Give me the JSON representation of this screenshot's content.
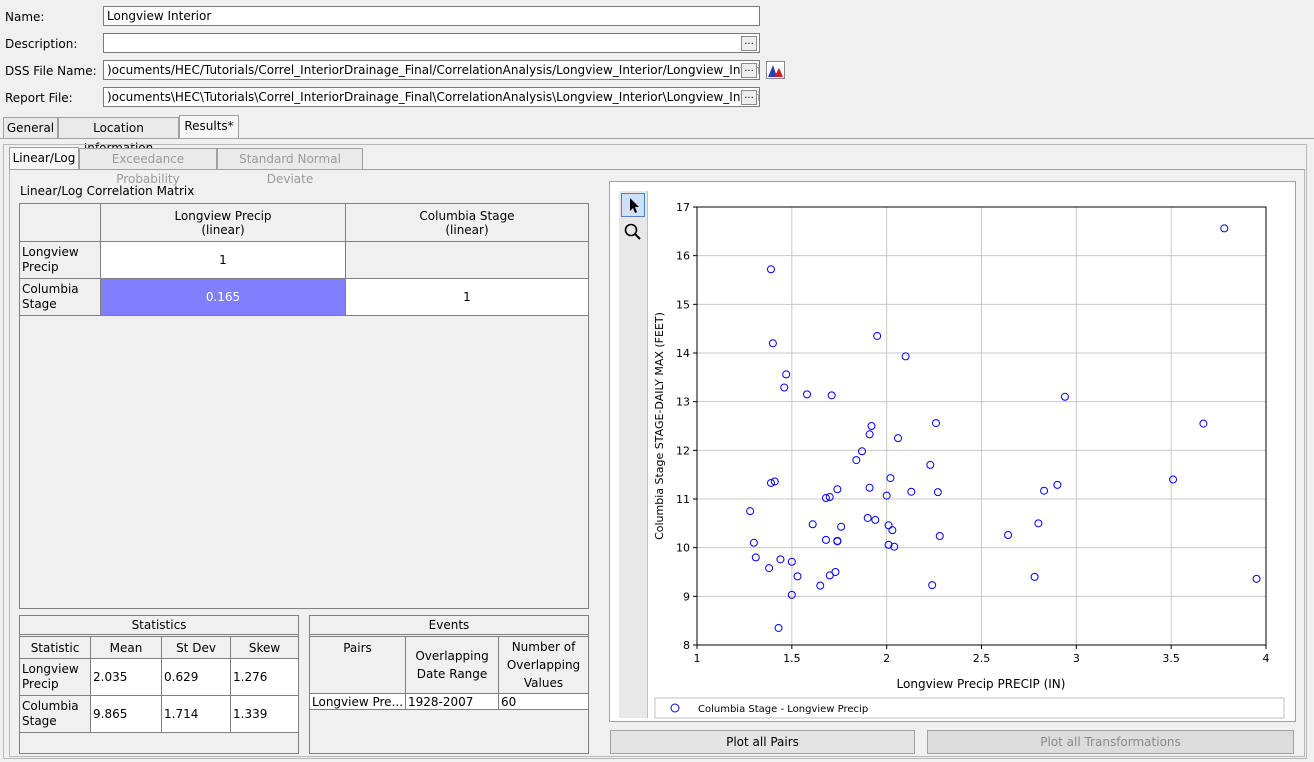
{
  "form": {
    "name_label": "Name:",
    "name_value": "Longview Interior",
    "description_label": "Description:",
    "description_value": "",
    "dss_label": "DSS File Name:",
    "dss_value": ")ocuments/HEC/Tutorials/Correl_InteriorDrainage_Final/CorrelationAnalysis/Longview_Interior/Longview_Interior.dss",
    "report_label": "Report File:",
    "report_value": ")ocuments\\HEC\\Tutorials\\Correl_InteriorDrainage_Final\\CorrelationAnalysis\\Longview_Interior\\Longview_Interior.rpt",
    "browse": "..."
  },
  "tabs": [
    "General",
    "Location Information",
    "Results*"
  ],
  "subtabs": [
    "Linear/Log",
    "Exceedance Probability",
    "Standard Normal Deviate"
  ],
  "matrix": {
    "title": "Linear/Log Correlation Matrix",
    "col1": [
      "Longview Precip",
      "(linear)"
    ],
    "col2": [
      "Columbia Stage",
      "(linear)"
    ],
    "row1": [
      "Longview",
      "Precip"
    ],
    "row2": [
      "Columbia",
      "Stage"
    ],
    "r1c1": "1",
    "r1c2": "",
    "r2c1": "0.165",
    "r2c2": "1",
    "highlight_color": "#8080ff"
  },
  "statistics": {
    "title": "Statistics",
    "headers": [
      "Statistic",
      "Mean",
      "St Dev",
      "Skew"
    ],
    "rows": [
      {
        "name": [
          "Longview",
          "Precip"
        ],
        "mean": "2.035",
        "stdev": "0.629",
        "skew": "1.276"
      },
      {
        "name": [
          "Columbia",
          "Stage"
        ],
        "mean": "9.865",
        "stdev": "1.714",
        "skew": "1.339"
      }
    ]
  },
  "events": {
    "title": "Events",
    "headers": [
      "Pairs",
      "Overlapping Date Range",
      "Number of Overlapping Values"
    ],
    "row": {
      "pairs": "Longview Pre...",
      "range": "1928-2007",
      "count": "60"
    }
  },
  "chart_data": {
    "type": "scatter",
    "xlabel": "Longview Precip PRECIP (IN)",
    "ylabel": "Columbia Stage STAGE-DAILY MAX (FEET)",
    "xlim": [
      1,
      4
    ],
    "ylim": [
      8,
      17
    ],
    "xticks": [
      "1",
      "1.5",
      "2",
      "2.5",
      "3",
      "3.5",
      "4"
    ],
    "yticks": [
      "8",
      "9",
      "10",
      "11",
      "12",
      "13",
      "14",
      "15",
      "16",
      "17"
    ],
    "grid": true,
    "marker_color": "#0000ff",
    "series": [
      {
        "name": "Columbia Stage - Longview Precip",
        "points": [
          [
            1.28,
            10.75
          ],
          [
            1.3,
            10.1
          ],
          [
            1.31,
            9.8
          ],
          [
            1.38,
            9.58
          ],
          [
            1.39,
            11.33
          ],
          [
            1.41,
            11.36
          ],
          [
            1.39,
            15.72
          ],
          [
            1.4,
            14.2
          ],
          [
            1.43,
            8.35
          ],
          [
            1.44,
            9.76
          ],
          [
            1.46,
            13.29
          ],
          [
            1.47,
            13.56
          ],
          [
            1.5,
            9.71
          ],
          [
            1.5,
            9.03
          ],
          [
            1.53,
            9.41
          ],
          [
            1.58,
            13.15
          ],
          [
            1.61,
            10.48
          ],
          [
            1.65,
            9.22
          ],
          [
            1.68,
            11.02
          ],
          [
            1.68,
            10.16
          ],
          [
            1.7,
            11.04
          ],
          [
            1.7,
            9.43
          ],
          [
            1.71,
            13.13
          ],
          [
            1.73,
            9.5
          ],
          [
            1.74,
            11.2
          ],
          [
            1.74,
            10.14
          ],
          [
            1.74,
            10.13
          ],
          [
            1.76,
            10.43
          ],
          [
            1.84,
            11.8
          ],
          [
            1.87,
            11.98
          ],
          [
            1.9,
            10.61
          ],
          [
            1.91,
            12.33
          ],
          [
            1.91,
            11.23
          ],
          [
            1.92,
            12.5
          ],
          [
            1.94,
            10.57
          ],
          [
            1.95,
            14.35
          ],
          [
            2.0,
            11.07
          ],
          [
            2.01,
            10.46
          ],
          [
            2.01,
            10.06
          ],
          [
            2.02,
            11.43
          ],
          [
            2.03,
            10.36
          ],
          [
            2.04,
            10.02
          ],
          [
            2.06,
            12.25
          ],
          [
            2.1,
            13.93
          ],
          [
            2.13,
            11.15
          ],
          [
            2.23,
            11.7
          ],
          [
            2.24,
            9.23
          ],
          [
            2.26,
            12.56
          ],
          [
            2.27,
            11.14
          ],
          [
            2.28,
            10.24
          ],
          [
            2.64,
            10.26
          ],
          [
            2.78,
            9.4
          ],
          [
            2.8,
            10.5
          ],
          [
            2.83,
            11.17
          ],
          [
            2.9,
            11.29
          ],
          [
            2.94,
            13.1
          ],
          [
            3.51,
            11.4
          ],
          [
            3.67,
            12.55
          ],
          [
            3.78,
            16.56
          ],
          [
            3.95,
            9.36
          ]
        ]
      }
    ]
  },
  "buttons": {
    "plot_pairs": "Plot all Pairs",
    "plot_transforms": "Plot all Transformations"
  }
}
